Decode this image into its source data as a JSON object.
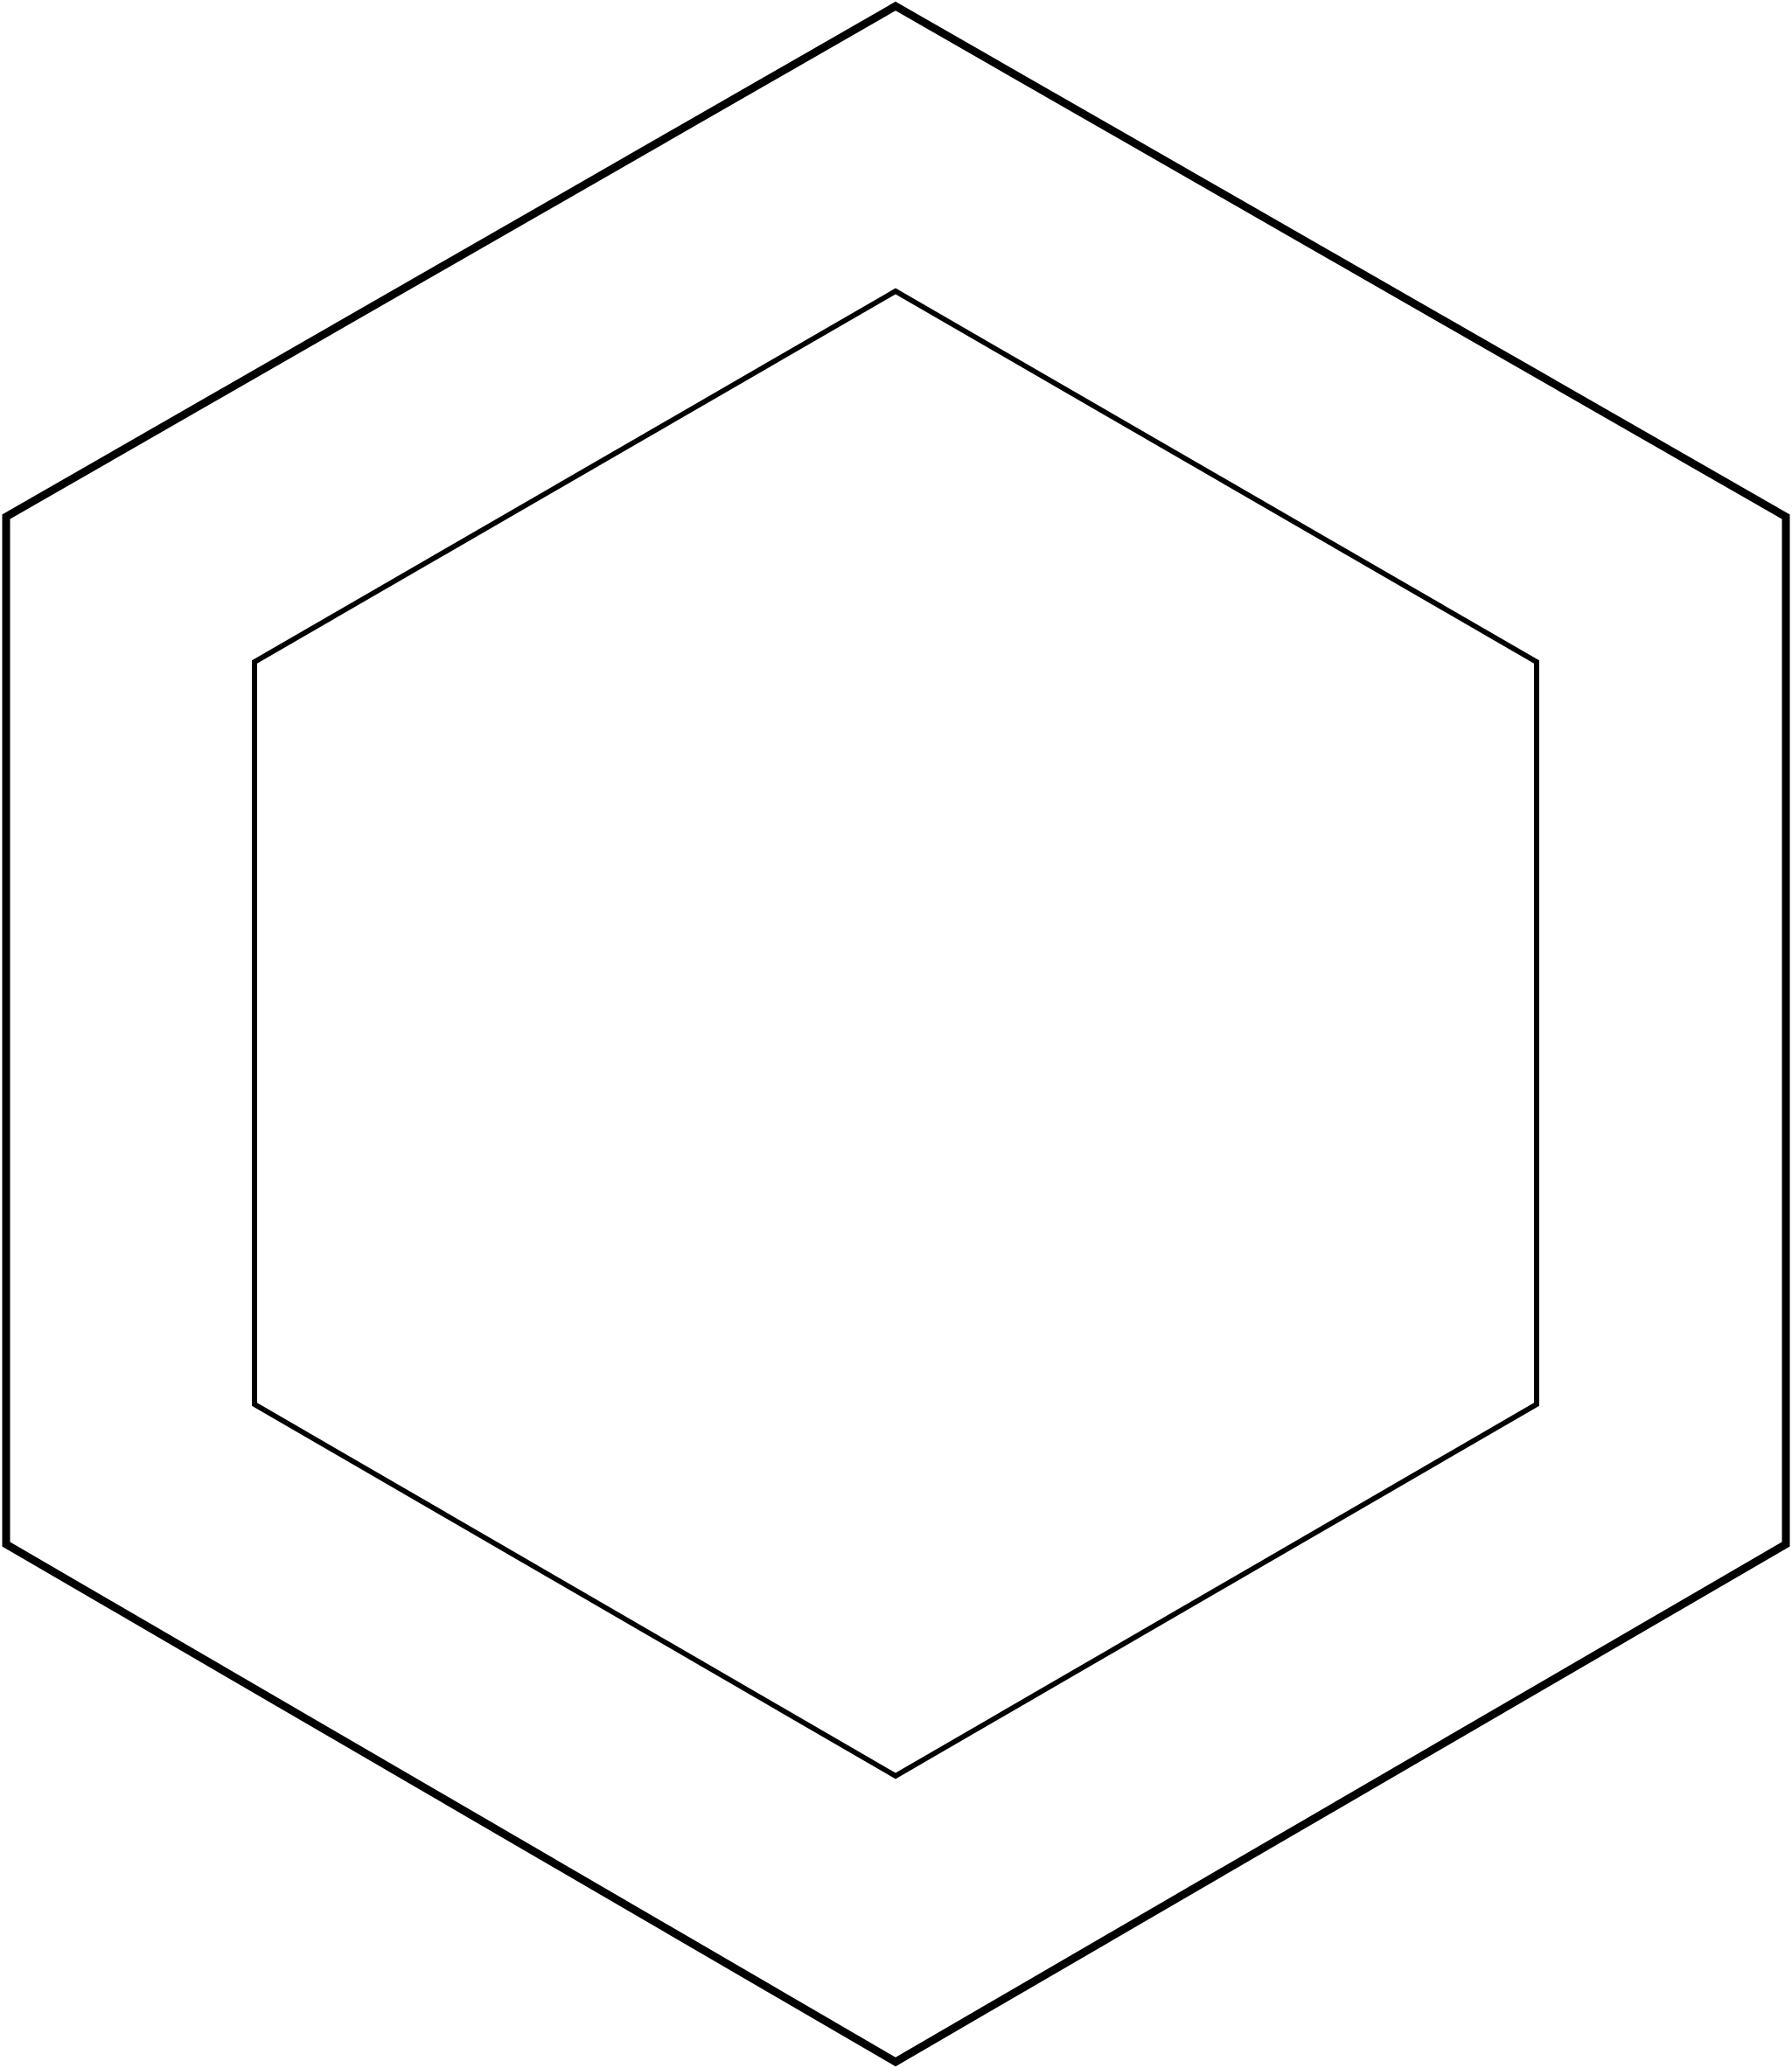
{
  "figure": {
    "shape": "hexagon",
    "background": "#ffffff",
    "stroke_color": "#000000",
    "outer_hexagon": {
      "role": "outer",
      "fill": "none"
    },
    "inner_hexagon": {
      "role": "inner",
      "fill": "none"
    }
  }
}
